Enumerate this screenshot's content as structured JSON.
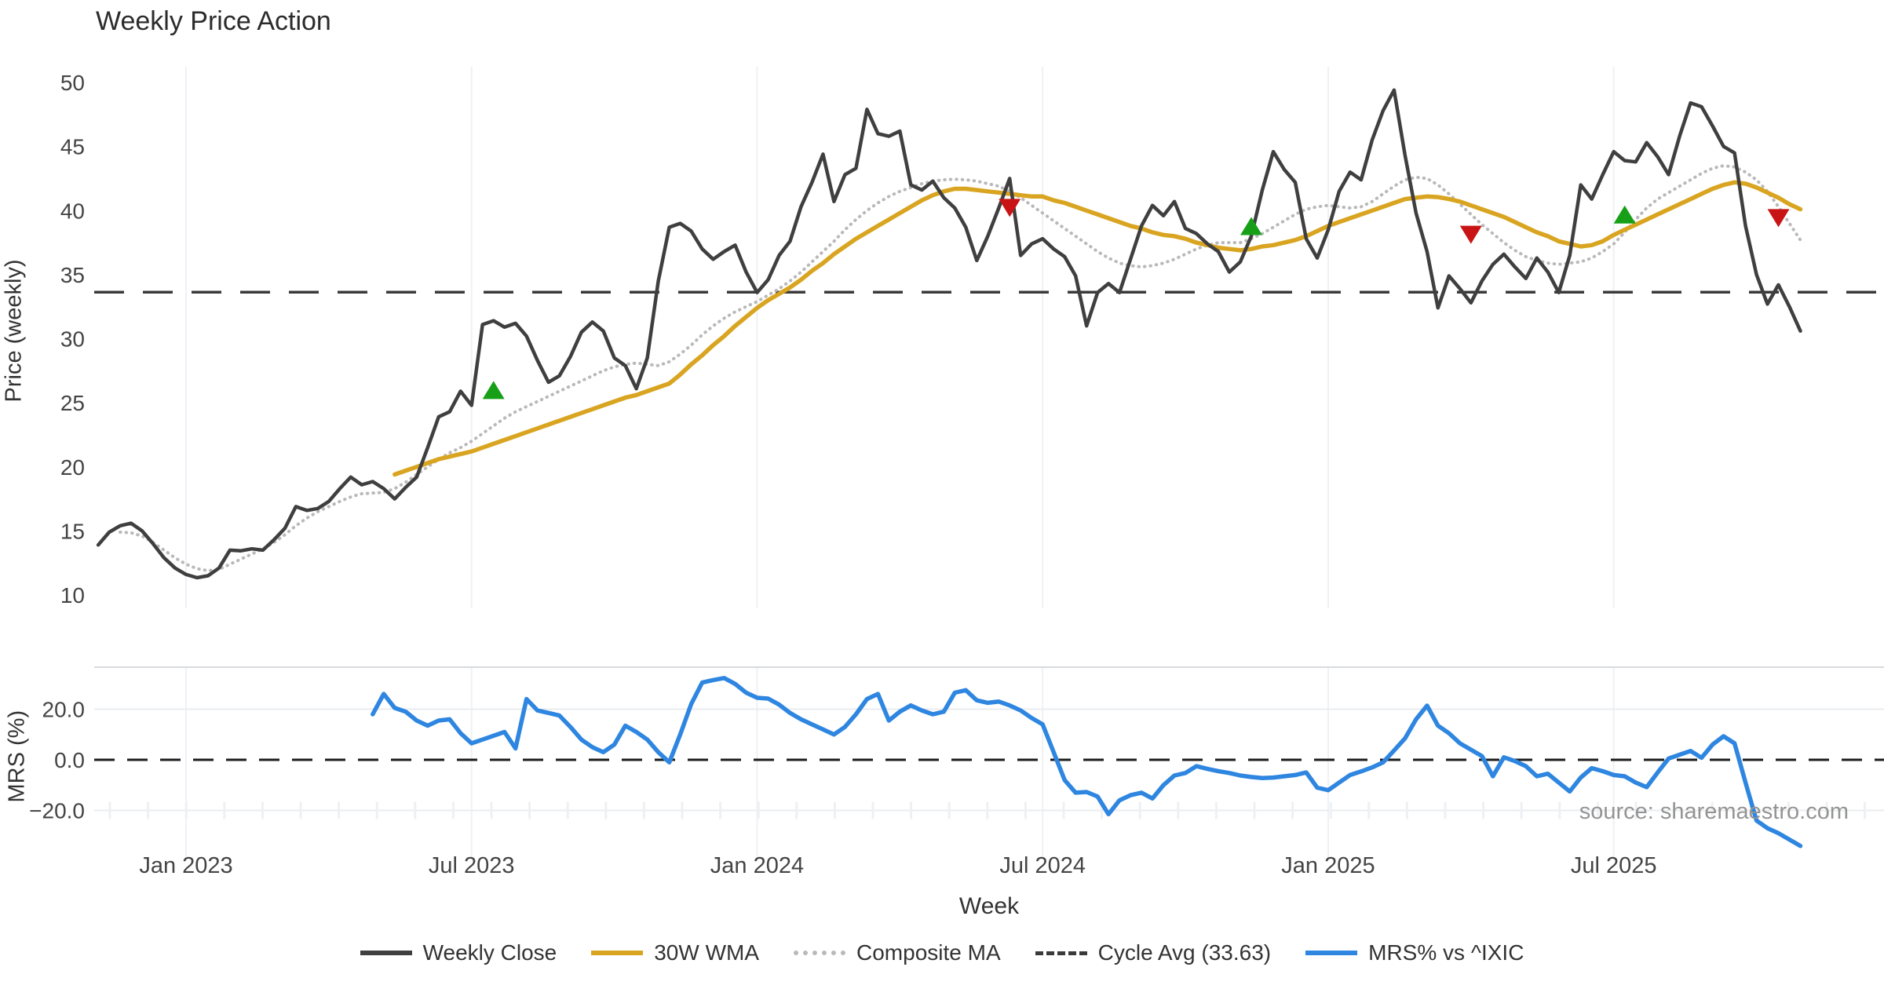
{
  "source": "source: sharemaestro.com",
  "legend": {
    "items": [
      {
        "label": "Weekly Close",
        "swatch": "solid-dark-line"
      },
      {
        "label": "30W WMA",
        "swatch": "solid-gold-line"
      },
      {
        "label": "Composite MA",
        "swatch": "dotted-gray-line"
      },
      {
        "label": "Cycle Avg (33.63)",
        "swatch": "dashed-dark-line"
      },
      {
        "label": "MRS% vs ^IXIC",
        "swatch": "solid-blue-line"
      }
    ]
  },
  "chart_data": {
    "type": "line",
    "title": "Weekly Price Action",
    "xlabel": "Week",
    "ylabel_price": "Price (weekly)",
    "ylabel_mrs": "MRS (%)",
    "legend_position": "bottom-center",
    "grid": "light vertical gridlines at half-year ticks; light horizontal gridlines at ±20 in MRS pane",
    "colors": {
      "weekly_close": "#3f3f3f",
      "wma30": "#d9a521",
      "composite_ma": "#b9b9b9",
      "cycle_avg": "#3a3a3a",
      "mrs": "#2e86e0",
      "buy_marker": "#17a017",
      "sell_marker": "#c81414",
      "gridline": "#eef1f6",
      "pane_border": "#d8dadd"
    },
    "xticks": [
      {
        "label": "Jan 2023",
        "week": 11
      },
      {
        "label": "Jul 2023",
        "week": 37
      },
      {
        "label": "Jan 2024",
        "week": 63
      },
      {
        "label": "Jul 2024",
        "week": 89
      },
      {
        "label": "Jan 2025",
        "week": 115
      },
      {
        "label": "Jul 2025",
        "week": 141
      }
    ],
    "price_yticks": [
      50,
      45,
      40,
      35,
      30,
      25,
      20,
      15,
      10
    ],
    "price_ylim": [
      8.9,
      51.3
    ],
    "mrs_yticks": [
      {
        "label": "20.0",
        "value": 20
      },
      {
        "label": "0.0",
        "value": 0
      },
      {
        "label": "−20.0",
        "value": -20
      }
    ],
    "mrs_ylim": [
      -39,
      36.5
    ],
    "cycle_avg_value": 33.63,
    "mrs_zero_line": 0,
    "series": {
      "weekly_close": {
        "start_week": 3,
        "values": [
          13.9,
          14.9,
          15.4,
          15.6,
          15.0,
          14.0,
          12.9,
          12.1,
          11.6,
          11.35,
          11.5,
          12.1,
          13.5,
          13.45,
          13.6,
          13.5,
          14.3,
          15.2,
          16.9,
          16.6,
          16.75,
          17.3,
          18.3,
          19.2,
          18.6,
          18.85,
          18.3,
          17.5,
          18.4,
          19.2,
          21.5,
          23.9,
          24.3,
          25.9,
          24.8,
          31.1,
          31.4,
          30.9,
          31.2,
          30.2,
          28.3,
          26.6,
          27.1,
          28.6,
          30.5,
          31.3,
          30.6,
          28.5,
          27.9,
          26.1,
          28.5,
          34.5,
          38.7,
          39.0,
          38.4,
          37.0,
          36.2,
          36.8,
          37.3,
          35.2,
          33.6,
          34.6,
          36.5,
          37.6,
          40.3,
          42.2,
          44.4,
          40.7,
          42.8,
          43.3,
          47.9,
          46.0,
          45.8,
          46.2,
          42.0,
          41.6,
          42.3,
          41.0,
          40.2,
          38.7,
          36.1,
          38.0,
          40.2,
          42.5,
          36.5,
          37.4,
          37.8,
          37.0,
          36.4,
          34.9,
          31.0,
          33.6,
          34.3,
          33.6,
          36.2,
          38.8,
          40.4,
          39.6,
          40.7,
          38.6,
          38.2,
          37.4,
          36.8,
          35.2,
          36.0,
          38.0,
          41.6,
          44.6,
          43.2,
          42.2,
          37.8,
          36.3,
          38.5,
          41.5,
          43.0,
          42.4,
          45.5,
          47.8,
          49.4,
          44.3,
          39.8,
          36.8,
          32.4,
          34.9,
          33.9,
          32.8,
          34.5,
          35.8,
          36.6,
          35.6,
          34.7,
          36.3,
          35.2,
          33.6,
          36.5,
          42.0,
          40.9,
          42.8,
          44.6,
          43.9,
          43.8,
          45.3,
          44.2,
          42.8,
          45.8,
          48.4,
          48.1,
          46.6,
          45.0,
          44.5,
          38.8,
          35.0,
          32.7,
          34.2,
          32.5,
          30.6
        ]
      },
      "wma30": {
        "start_week": 30,
        "values": [
          19.4,
          19.7,
          20.0,
          20.3,
          20.6,
          20.8,
          21.0,
          21.2,
          21.5,
          21.8,
          22.1,
          22.4,
          22.7,
          23.0,
          23.3,
          23.6,
          23.9,
          24.2,
          24.5,
          24.8,
          25.1,
          25.4,
          25.6,
          25.9,
          26.2,
          26.5,
          27.2,
          28.0,
          28.7,
          29.5,
          30.2,
          31.0,
          31.7,
          32.4,
          33.0,
          33.5,
          34.0,
          34.6,
          35.3,
          35.9,
          36.6,
          37.2,
          37.8,
          38.3,
          38.8,
          39.3,
          39.8,
          40.3,
          40.8,
          41.2,
          41.5,
          41.7,
          41.7,
          41.6,
          41.5,
          41.4,
          41.3,
          41.2,
          41.1,
          41.1,
          40.8,
          40.6,
          40.3,
          40.0,
          39.7,
          39.4,
          39.1,
          38.8,
          38.6,
          38.3,
          38.1,
          38.0,
          37.8,
          37.5,
          37.3,
          37.1,
          37.0,
          36.9,
          37.0,
          37.2,
          37.3,
          37.5,
          37.7,
          38.0,
          38.4,
          38.8,
          39.1,
          39.4,
          39.7,
          40.0,
          40.3,
          40.6,
          40.9,
          41.0,
          41.1,
          41.05,
          40.9,
          40.7,
          40.4,
          40.1,
          39.8,
          39.5,
          39.1,
          38.7,
          38.3,
          38.0,
          37.6,
          37.4,
          37.2,
          37.3,
          37.6,
          38.1,
          38.5,
          38.9,
          39.3,
          39.7,
          40.1,
          40.5,
          40.9,
          41.3,
          41.7,
          42.0,
          42.2,
          42.1,
          41.8,
          41.4,
          41.0,
          40.5,
          40.1
        ]
      },
      "composite_ma": {
        "start_week": 5,
        "values": [
          14.9,
          14.85,
          14.6,
          14.1,
          13.5,
          12.9,
          12.4,
          12.05,
          11.9,
          12.0,
          12.4,
          12.8,
          13.2,
          13.6,
          14.1,
          14.7,
          15.4,
          16.0,
          16.5,
          16.9,
          17.3,
          17.65,
          17.9,
          17.95,
          18.0,
          18.3,
          18.8,
          19.4,
          20.0,
          20.6,
          21.1,
          21.5,
          22.0,
          22.6,
          23.2,
          23.8,
          24.3,
          24.7,
          25.1,
          25.5,
          25.9,
          26.3,
          26.7,
          27.1,
          27.5,
          27.8,
          28.0,
          28.1,
          28.0,
          27.9,
          28.2,
          28.8,
          29.5,
          30.3,
          31.0,
          31.6,
          32.1,
          32.5,
          32.9,
          33.4,
          33.9,
          34.5,
          35.2,
          36.0,
          36.8,
          37.6,
          38.5,
          39.3,
          40.0,
          40.6,
          41.1,
          41.5,
          41.8,
          42.1,
          42.3,
          42.4,
          42.45,
          42.4,
          42.3,
          42.1,
          41.9,
          41.5,
          41.0,
          40.4,
          39.8,
          39.2,
          38.6,
          38.0,
          37.4,
          36.8,
          36.3,
          35.9,
          35.7,
          35.6,
          35.7,
          35.9,
          36.2,
          36.6,
          37.0,
          37.3,
          37.5,
          37.5,
          37.5,
          37.8,
          38.2,
          38.7,
          39.2,
          39.7,
          40.1,
          40.3,
          40.4,
          40.3,
          40.2,
          40.3,
          40.7,
          41.3,
          41.9,
          42.4,
          42.6,
          42.5,
          42.0,
          41.3,
          40.5,
          39.7,
          38.9,
          38.2,
          37.5,
          36.9,
          36.4,
          36.1,
          35.9,
          35.8,
          35.9,
          36.0,
          36.3,
          36.8,
          37.4,
          38.3,
          39.3,
          40.2,
          40.9,
          41.4,
          41.9,
          42.4,
          42.9,
          43.3,
          43.5,
          43.4,
          43.0,
          42.4,
          41.5,
          40.3,
          39.0,
          37.7
        ]
      },
      "mrs": {
        "start_week": 28,
        "values": [
          18,
          26,
          20.5,
          19,
          15.5,
          13.5,
          15.5,
          16,
          10.5,
          6.5,
          8,
          9.5,
          11,
          4.5,
          24,
          19.5,
          18.5,
          17.5,
          13,
          8,
          5,
          3,
          6,
          13.5,
          11,
          8,
          3,
          -1,
          10,
          22,
          30.5,
          31.5,
          32.3,
          30,
          26.5,
          24.5,
          24.2,
          21.8,
          18.5,
          16,
          14,
          12,
          10,
          13,
          18,
          24,
          26,
          15.5,
          19,
          21.5,
          19.5,
          18,
          19,
          26.5,
          27.5,
          23.5,
          22.5,
          23,
          21.5,
          19.5,
          16.5,
          14,
          3,
          -8,
          -13,
          -12.7,
          -14.5,
          -21.5,
          -16,
          -14,
          -13,
          -15.3,
          -10,
          -6.2,
          -5.2,
          -2.5,
          -3.6,
          -4.5,
          -5.2,
          -6.2,
          -6.8,
          -7.2,
          -7,
          -6.5,
          -6,
          -5,
          -11,
          -12,
          -9,
          -6,
          -4.6,
          -3,
          -1,
          3.7,
          8.5,
          16,
          21.4,
          13.5,
          10.5,
          6.5,
          4,
          1.5,
          -6.5,
          1,
          -0.5,
          -2.5,
          -6.5,
          -5.5,
          -9,
          -12.5,
          -7,
          -3.3,
          -4.5,
          -6,
          -6.5,
          -9,
          -10.8,
          -5,
          0.5,
          2,
          3.5,
          0.8,
          6,
          9.3,
          6.5,
          -9,
          -24,
          -27,
          -29,
          -31.5,
          -34
        ]
      }
    },
    "signals": {
      "buy": [
        {
          "week": 39,
          "value": 25.9
        },
        {
          "week": 108,
          "value": 38.7
        },
        {
          "week": 142,
          "value": 39.6
        }
      ],
      "sell": [
        {
          "week": 86,
          "value": 40.3
        },
        {
          "week": 128,
          "value": 38.2
        },
        {
          "week": 156,
          "value": 39.5
        }
      ]
    }
  }
}
